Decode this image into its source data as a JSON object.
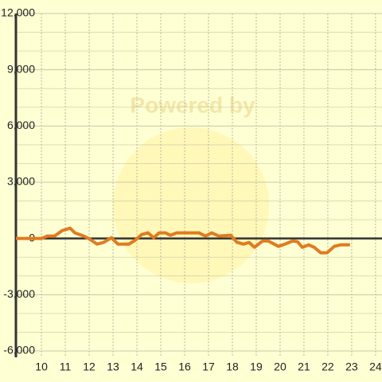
{
  "chart_data": {
    "type": "line",
    "watermark": "Powered by",
    "x": [
      8.93,
      9.5,
      10.0,
      10.25,
      10.55,
      10.87,
      11.2,
      11.4,
      11.77,
      12.03,
      12.33,
      12.6,
      12.93,
      13.2,
      13.67,
      13.93,
      14.2,
      14.47,
      14.7,
      14.93,
      15.2,
      15.4,
      15.67,
      16.6,
      16.87,
      17.13,
      17.43,
      17.93,
      18.2,
      18.47,
      18.7,
      18.93,
      19.27,
      19.5,
      19.93,
      20.2,
      20.53,
      20.73,
      20.93,
      21.2,
      21.43,
      21.7,
      21.97,
      22.27,
      22.53,
      22.93
    ],
    "series": [
      {
        "color": "#e07b20",
        "values": [
          0,
          0,
          0,
          130,
          130,
          420,
          550,
          300,
          130,
          -40,
          -300,
          -210,
          40,
          -300,
          -300,
          -85,
          210,
          300,
          40,
          300,
          300,
          170,
          300,
          300,
          130,
          300,
          130,
          170,
          -210,
          -300,
          -210,
          -470,
          -130,
          -130,
          -420,
          -300,
          -130,
          -170,
          -470,
          -340,
          -470,
          -760,
          -760,
          -420,
          -340,
          -340
        ]
      }
    ],
    "xlim": [
      8.93,
      24.27
    ],
    "xticks": [
      10,
      11,
      12,
      13,
      14,
      15,
      16,
      17,
      18,
      19,
      20,
      21,
      22,
      23,
      24
    ],
    "ylim": [
      -6000,
      12000
    ],
    "yticks": [
      {
        "value": -6000,
        "label": "-6,000"
      },
      {
        "value": -3000,
        "label": "-3,000"
      },
      0,
      {
        "value": 3000,
        "label": "3,000"
      },
      {
        "value": 6000,
        "label": "6,000"
      },
      {
        "value": 9000,
        "label": "9,000"
      },
      {
        "value": 12000,
        "label": "12,000"
      }
    ],
    "grid": true
  }
}
